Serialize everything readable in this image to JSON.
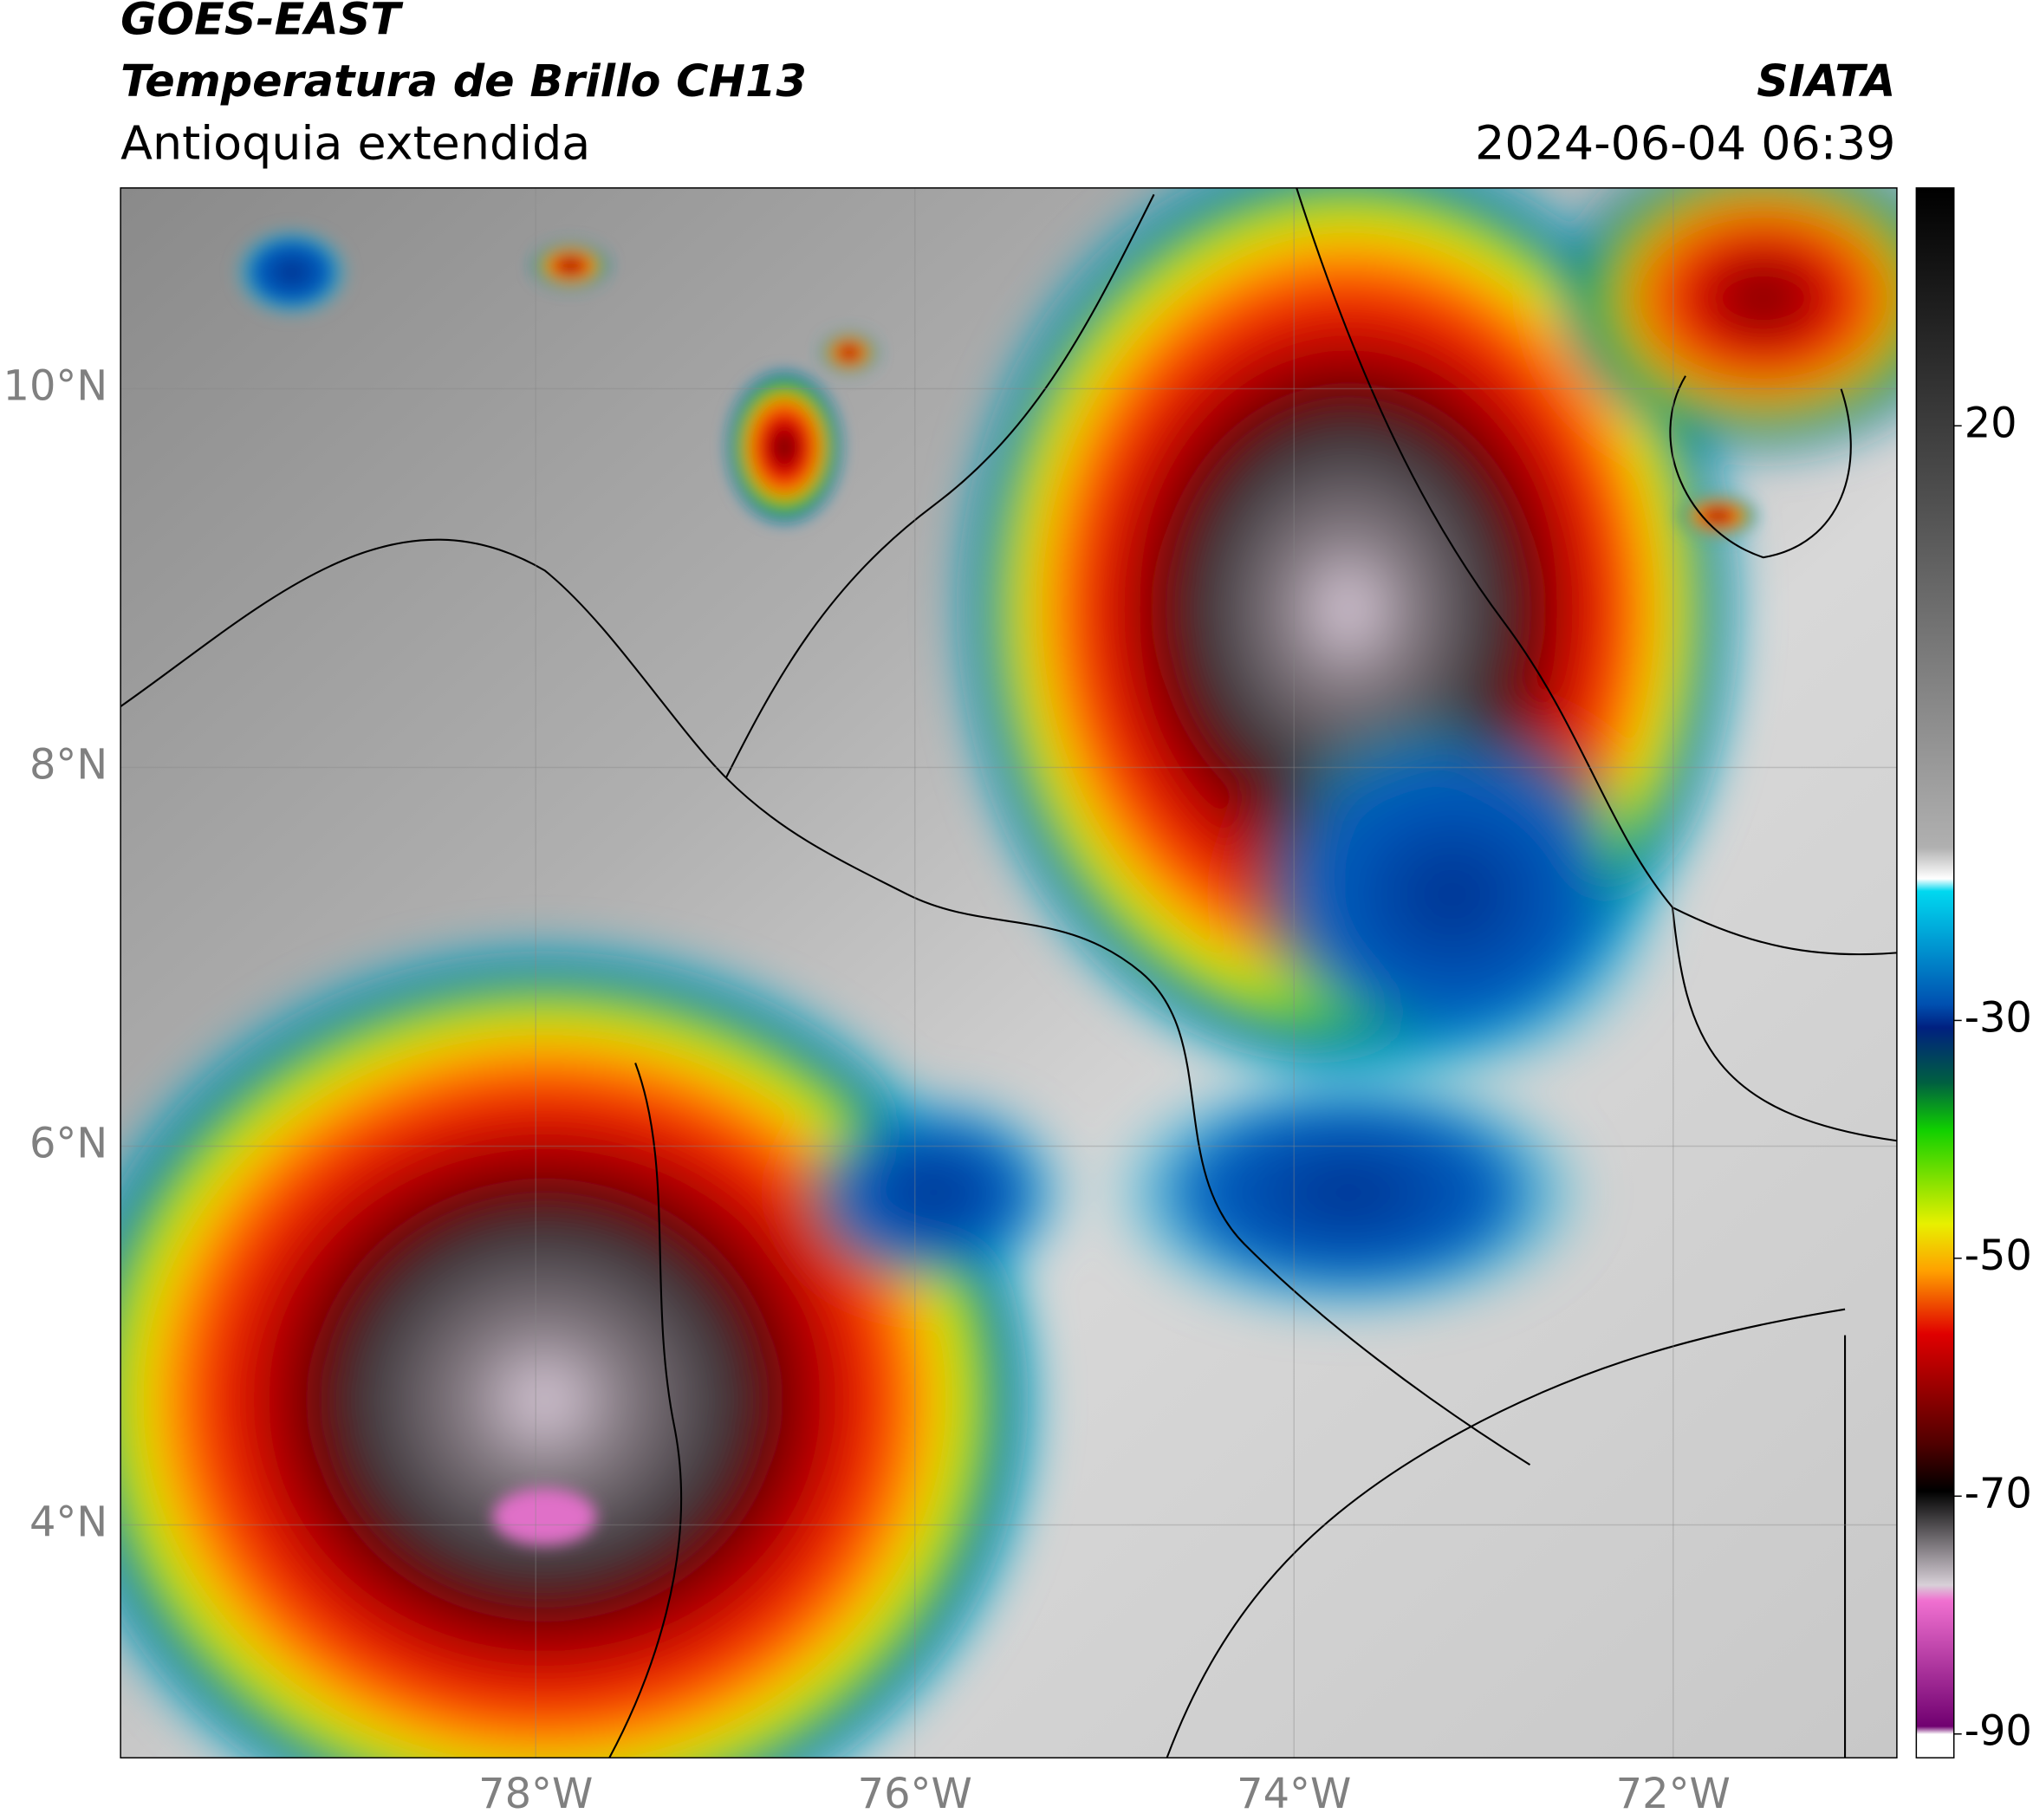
{
  "header": {
    "title": "GOES-EAST",
    "subtitle": "Temperatura de Brillo CH13",
    "region": "Antioquia extendida",
    "source": "SIATA",
    "datetime": "2024-06-04 06:39"
  },
  "map": {
    "lonlim": [
      -80.19,
      -70.82
    ],
    "latlim": [
      2.77,
      11.06
    ],
    "lat_ticks": [
      {
        "value": 10,
        "label": "10°N"
      },
      {
        "value": 8,
        "label": "8°N"
      },
      {
        "value": 6,
        "label": "6°N"
      },
      {
        "value": 4,
        "label": "4°N"
      }
    ],
    "lon_ticks": [
      {
        "value": -78,
        "label": "78°W"
      },
      {
        "value": -76,
        "label": "76°W"
      },
      {
        "value": -74,
        "label": "74°W"
      },
      {
        "value": -72,
        "label": "72°W"
      }
    ]
  },
  "colorbar": {
    "lim": [
      -92,
      40
    ],
    "ticks": [
      20,
      -30,
      -50,
      -70,
      -90
    ]
  }
}
